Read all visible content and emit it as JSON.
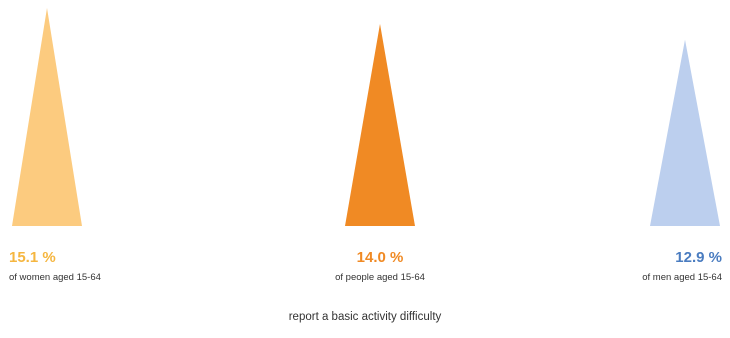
{
  "chart_data": {
    "type": "bar",
    "categories": [
      "of women aged 15-64",
      "of people aged 15-64",
      "of men aged 15-64"
    ],
    "values": [
      15.1,
      14.0,
      12.9
    ],
    "value_labels": [
      "15.1 %",
      "14.0 %",
      "12.9 %"
    ],
    "unit": "%",
    "mark_shape": "triangle",
    "colors": [
      "#fccb7f",
      "#f08a24",
      "#bccfee"
    ],
    "label_colors": [
      "#f5b640",
      "#f08a24",
      "#4a7cc0"
    ],
    "label_align": [
      "left",
      "center",
      "right"
    ],
    "footer": "report a basic activity difficulty",
    "ylim": [
      0,
      15.1
    ],
    "grid": false,
    "legend": "none"
  }
}
